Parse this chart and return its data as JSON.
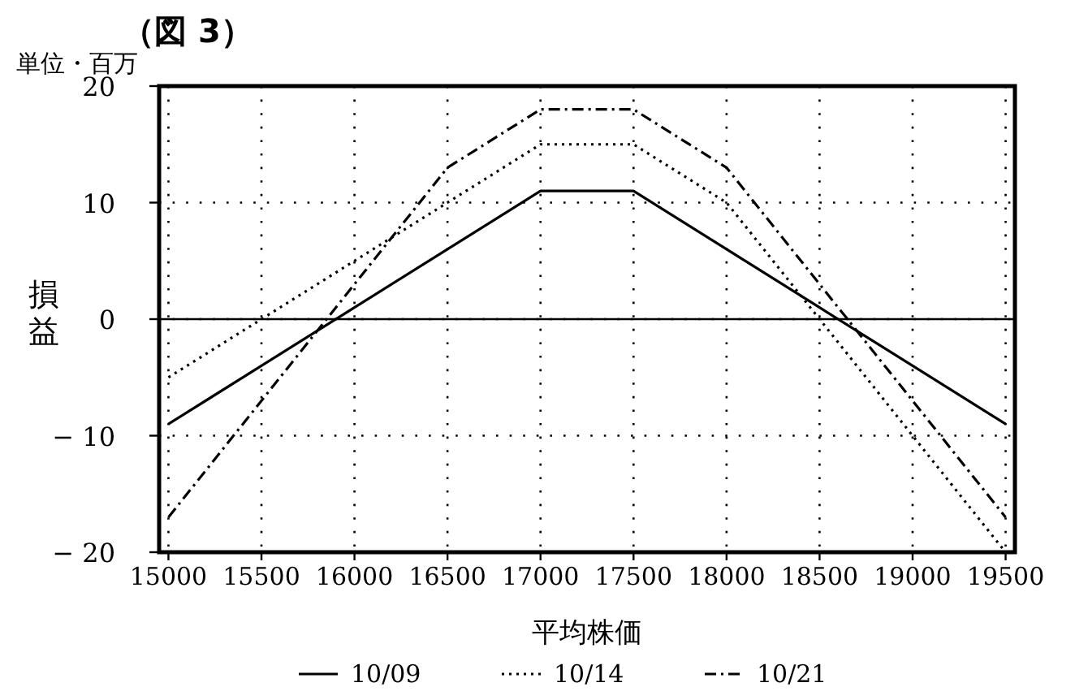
{
  "chart_data": {
    "type": "line",
    "title": "（図 3）",
    "ylabel": "損益",
    "xlabel": "平均株価",
    "annotations": [
      "単位・百万"
    ],
    "x": [
      15000,
      15500,
      16000,
      16500,
      17000,
      17500,
      18000,
      18500,
      19000,
      19500
    ],
    "series": [
      {
        "name": "10/09",
        "color": "#000000",
        "line_style": "solid",
        "values": [
          -9,
          -4,
          1,
          6,
          11,
          11,
          6,
          1,
          -4,
          -9
        ]
      },
      {
        "name": "10/14",
        "color": "#000000",
        "line_style": "dotted",
        "values": [
          -5,
          0,
          5,
          10,
          15,
          15,
          10,
          0,
          -10,
          -20
        ]
      },
      {
        "name": "10/21",
        "color": "#000000",
        "line_style": "dashdot",
        "values": [
          -17,
          -7,
          3,
          13,
          18,
          18,
          13,
          3,
          -7,
          -17
        ]
      }
    ],
    "xlim": [
      14950,
      19550
    ],
    "xticks": [
      15000,
      15500,
      16000,
      16500,
      17000,
      17500,
      18000,
      18500,
      19000,
      19500
    ],
    "ylim": [
      -20,
      20
    ],
    "yticks": [
      -20,
      -10,
      0,
      10,
      20
    ],
    "ref_lines": [
      {
        "axis": "y",
        "value": 0,
        "color": "#000000",
        "line_style": "solid"
      }
    ],
    "grid": true,
    "legend": "bottom"
  }
}
